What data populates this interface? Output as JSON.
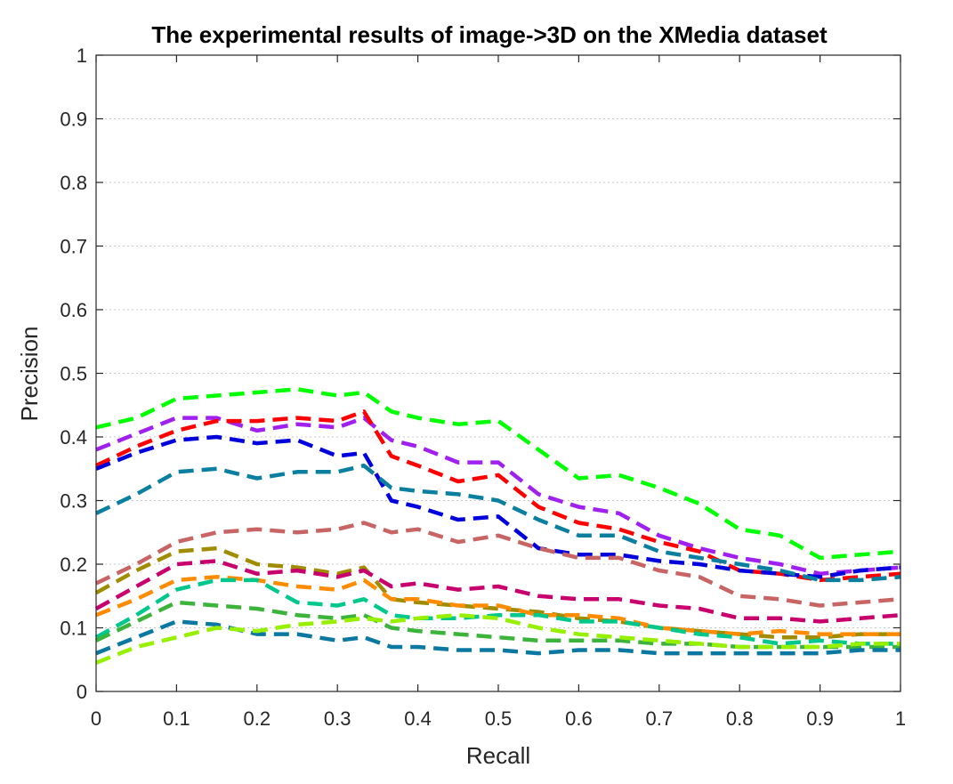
{
  "chart_data": {
    "type": "line",
    "title": "The experimental results of image->3D on the XMedia dataset",
    "xlabel": "Recall",
    "ylabel": "Precision",
    "xlim": [
      0,
      1
    ],
    "ylim": [
      0,
      1
    ],
    "xticks": [
      "0",
      "0.1",
      "0.2",
      "0.3",
      "0.4",
      "0.5",
      "0.6",
      "0.7",
      "0.8",
      "0.9",
      "1"
    ],
    "yticks": [
      "0",
      "0.1",
      "0.2",
      "0.3",
      "0.4",
      "0.5",
      "0.6",
      "0.7",
      "0.8",
      "0.9",
      "1"
    ],
    "grid": "horizontal dotted",
    "legend": "none",
    "x": [
      0,
      0.05,
      0.1,
      0.15,
      0.2,
      0.25,
      0.3,
      0.333,
      0.367,
      0.4,
      0.45,
      0.5,
      0.55,
      0.6,
      0.65,
      0.7,
      0.75,
      0.8,
      0.85,
      0.9,
      0.95,
      1
    ],
    "series": [
      {
        "color": "#00ff00",
        "values": [
          0.415,
          0.43,
          0.46,
          0.465,
          0.47,
          0.475,
          0.465,
          0.47,
          0.44,
          0.43,
          0.42,
          0.425,
          0.38,
          0.335,
          0.34,
          0.32,
          0.295,
          0.255,
          0.245,
          0.21,
          0.215,
          0.22
        ]
      },
      {
        "color": "#a020f0",
        "values": [
          0.38,
          0.405,
          0.43,
          0.43,
          0.41,
          0.42,
          0.415,
          0.43,
          0.395,
          0.385,
          0.36,
          0.36,
          0.31,
          0.29,
          0.28,
          0.245,
          0.225,
          0.21,
          0.2,
          0.185,
          0.19,
          0.195
        ]
      },
      {
        "color": "#ff0000",
        "values": [
          0.355,
          0.385,
          0.41,
          0.425,
          0.425,
          0.43,
          0.425,
          0.44,
          0.37,
          0.355,
          0.33,
          0.34,
          0.29,
          0.265,
          0.255,
          0.235,
          0.22,
          0.19,
          0.185,
          0.175,
          0.18,
          0.185
        ]
      },
      {
        "color": "#0000dd",
        "values": [
          0.35,
          0.375,
          0.395,
          0.4,
          0.39,
          0.395,
          0.37,
          0.375,
          0.3,
          0.29,
          0.27,
          0.275,
          0.225,
          0.215,
          0.215,
          0.205,
          0.2,
          0.19,
          0.185,
          0.18,
          0.19,
          0.195
        ]
      },
      {
        "color": "#0a7fa0",
        "values": [
          0.28,
          0.31,
          0.345,
          0.35,
          0.335,
          0.345,
          0.345,
          0.355,
          0.32,
          0.315,
          0.31,
          0.3,
          0.27,
          0.245,
          0.245,
          0.22,
          0.21,
          0.2,
          0.19,
          0.175,
          0.175,
          0.18
        ]
      },
      {
        "color": "#c86464",
        "values": [
          0.17,
          0.2,
          0.235,
          0.25,
          0.255,
          0.25,
          0.255,
          0.265,
          0.25,
          0.255,
          0.235,
          0.245,
          0.225,
          0.21,
          0.21,
          0.19,
          0.18,
          0.15,
          0.145,
          0.135,
          0.14,
          0.145
        ]
      },
      {
        "color": "#a08c00",
        "values": [
          0.155,
          0.19,
          0.22,
          0.225,
          0.2,
          0.195,
          0.185,
          0.195,
          0.145,
          0.14,
          0.135,
          0.13,
          0.125,
          0.115,
          0.11,
          0.1,
          0.095,
          0.09,
          0.085,
          0.085,
          0.09,
          0.09
        ]
      },
      {
        "color": "#c8006e",
        "values": [
          0.13,
          0.165,
          0.2,
          0.205,
          0.185,
          0.19,
          0.18,
          0.19,
          0.165,
          0.17,
          0.16,
          0.165,
          0.15,
          0.145,
          0.145,
          0.135,
          0.13,
          0.115,
          0.115,
          0.11,
          0.115,
          0.12
        ]
      },
      {
        "color": "#ff8c00",
        "values": [
          0.12,
          0.145,
          0.175,
          0.18,
          0.175,
          0.165,
          0.16,
          0.175,
          0.145,
          0.145,
          0.135,
          0.135,
          0.12,
          0.12,
          0.115,
          0.1,
          0.095,
          0.09,
          0.095,
          0.09,
          0.09,
          0.09
        ]
      },
      {
        "color": "#00c88c",
        "values": [
          0.085,
          0.12,
          0.16,
          0.175,
          0.175,
          0.14,
          0.135,
          0.145,
          0.12,
          0.115,
          0.115,
          0.12,
          0.12,
          0.11,
          0.11,
          0.1,
          0.09,
          0.085,
          0.075,
          0.08,
          0.075,
          0.075
        ]
      },
      {
        "color": "#3cb43c",
        "values": [
          0.08,
          0.11,
          0.14,
          0.135,
          0.13,
          0.12,
          0.115,
          0.12,
          0.1,
          0.095,
          0.09,
          0.085,
          0.08,
          0.08,
          0.08,
          0.075,
          0.075,
          0.07,
          0.07,
          0.07,
          0.07,
          0.07
        ]
      },
      {
        "color": "#0a78a0",
        "values": [
          0.06,
          0.085,
          0.11,
          0.105,
          0.09,
          0.09,
          0.08,
          0.085,
          0.07,
          0.07,
          0.065,
          0.065,
          0.06,
          0.065,
          0.065,
          0.06,
          0.06,
          0.06,
          0.06,
          0.06,
          0.065,
          0.065
        ]
      },
      {
        "color": "#96f000",
        "values": [
          0.045,
          0.07,
          0.085,
          0.1,
          0.095,
          0.105,
          0.11,
          0.115,
          0.11,
          0.115,
          0.12,
          0.115,
          0.1,
          0.09,
          0.085,
          0.08,
          0.075,
          0.07,
          0.07,
          0.07,
          0.075,
          0.075
        ]
      }
    ]
  }
}
